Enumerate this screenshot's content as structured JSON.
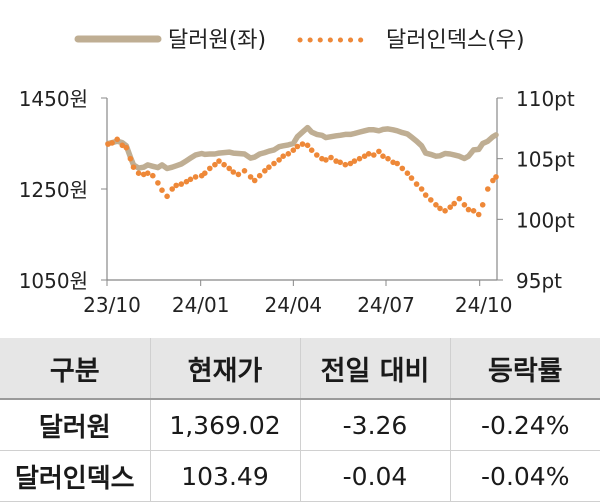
{
  "chart_data": {
    "type": "line",
    "legend": {
      "placement": "top",
      "items": [
        {
          "name": "달러원(좌)",
          "style": "solid"
        },
        {
          "name": "달러인덱스(우)",
          "style": "dotted"
        }
      ]
    },
    "x_ticks": [
      "23/10",
      "24/01",
      "24/04",
      "24/07",
      "24/10"
    ],
    "y_left": {
      "ticks": [
        "1450원",
        "1250원",
        "1050원"
      ],
      "range": [
        1050,
        1450
      ]
    },
    "y_right": {
      "ticks": [
        "110pt",
        "105pt",
        "100pt",
        "95pt"
      ],
      "range": [
        95,
        110
      ]
    },
    "grid": false,
    "series": [
      {
        "name": "달러원(좌)",
        "axis": "left",
        "color": "#bfae93",
        "points": [
          [
            "2023-10-02",
            1350
          ],
          [
            "2023-10-06",
            1352
          ],
          [
            "2023-10-11",
            1355
          ],
          [
            "2023-10-16",
            1352
          ],
          [
            "2023-10-20",
            1345
          ],
          [
            "2023-10-24",
            1320
          ],
          [
            "2023-10-27",
            1303
          ],
          [
            "2023-11-01",
            1296
          ],
          [
            "2023-11-06",
            1298
          ],
          [
            "2023-11-10",
            1303
          ],
          [
            "2023-11-15",
            1300
          ],
          [
            "2023-11-20",
            1297
          ],
          [
            "2023-11-24",
            1303
          ],
          [
            "2023-11-29",
            1295
          ],
          [
            "2023-12-04",
            1298
          ],
          [
            "2023-12-08",
            1301
          ],
          [
            "2023-12-13",
            1305
          ],
          [
            "2023-12-18",
            1312
          ],
          [
            "2023-12-22",
            1318
          ],
          [
            "2023-12-27",
            1325
          ],
          [
            "2024-01-02",
            1328
          ],
          [
            "2024-01-05",
            1326
          ],
          [
            "2024-01-10",
            1327
          ],
          [
            "2024-01-15",
            1327
          ],
          [
            "2024-01-19",
            1329
          ],
          [
            "2024-01-24",
            1330
          ],
          [
            "2024-01-29",
            1331
          ],
          [
            "2024-02-02",
            1329
          ],
          [
            "2024-02-07",
            1328
          ],
          [
            "2024-02-13",
            1327
          ],
          [
            "2024-02-19",
            1318
          ],
          [
            "2024-02-23",
            1320
          ],
          [
            "2024-02-28",
            1327
          ],
          [
            "2024-03-04",
            1330
          ],
          [
            "2024-03-08",
            1333
          ],
          [
            "2024-03-13",
            1336
          ],
          [
            "2024-03-18",
            1343
          ],
          [
            "2024-03-22",
            1345
          ],
          [
            "2024-03-27",
            1347
          ],
          [
            "2024-04-01",
            1350
          ],
          [
            "2024-04-05",
            1365
          ],
          [
            "2024-04-10",
            1375
          ],
          [
            "2024-04-15",
            1385
          ],
          [
            "2024-04-19",
            1375
          ],
          [
            "2024-04-24",
            1370
          ],
          [
            "2024-04-29",
            1368
          ],
          [
            "2024-05-03",
            1363
          ],
          [
            "2024-05-08",
            1365
          ],
          [
            "2024-05-13",
            1367
          ],
          [
            "2024-05-17",
            1368
          ],
          [
            "2024-05-22",
            1370
          ],
          [
            "2024-05-27",
            1370
          ],
          [
            "2024-05-31",
            1372
          ],
          [
            "2024-06-05",
            1375
          ],
          [
            "2024-06-10",
            1378
          ],
          [
            "2024-06-14",
            1380
          ],
          [
            "2024-06-19",
            1380
          ],
          [
            "2024-06-24",
            1378
          ],
          [
            "2024-06-28",
            1381
          ],
          [
            "2024-07-03",
            1382
          ],
          [
            "2024-07-08",
            1380
          ],
          [
            "2024-07-12",
            1378
          ],
          [
            "2024-07-17",
            1374
          ],
          [
            "2024-07-22",
            1371
          ],
          [
            "2024-07-26",
            1364
          ],
          [
            "2024-07-31",
            1355
          ],
          [
            "2024-08-05",
            1345
          ],
          [
            "2024-08-09",
            1329
          ],
          [
            "2024-08-14",
            1326
          ],
          [
            "2024-08-19",
            1322
          ],
          [
            "2024-08-23",
            1323
          ],
          [
            "2024-08-28",
            1328
          ],
          [
            "2024-09-02",
            1327
          ],
          [
            "2024-09-06",
            1325
          ],
          [
            "2024-09-11",
            1322
          ],
          [
            "2024-09-16",
            1317
          ],
          [
            "2024-09-20",
            1322
          ],
          [
            "2024-09-25",
            1336
          ],
          [
            "2024-09-30",
            1337
          ],
          [
            "2024-10-04",
            1350
          ],
          [
            "2024-10-09",
            1355
          ],
          [
            "2024-10-14",
            1365
          ],
          [
            "2024-10-17",
            1369
          ]
        ]
      },
      {
        "name": "달러인덱스(우)",
        "axis": "right",
        "color": "#ee8838",
        "points": [
          [
            "2023-10-02",
            106.2
          ],
          [
            "2023-10-06",
            106.3
          ],
          [
            "2023-10-11",
            106.6
          ],
          [
            "2023-10-16",
            106.1
          ],
          [
            "2023-10-20",
            105.9
          ],
          [
            "2023-10-24",
            105.0
          ],
          [
            "2023-10-27",
            104.3
          ],
          [
            "2023-11-01",
            103.8
          ],
          [
            "2023-11-06",
            103.7
          ],
          [
            "2023-11-10",
            103.8
          ],
          [
            "2023-11-15",
            103.6
          ],
          [
            "2023-11-20",
            103.0
          ],
          [
            "2023-11-24",
            102.4
          ],
          [
            "2023-11-29",
            101.9
          ],
          [
            "2023-12-04",
            102.5
          ],
          [
            "2023-12-08",
            102.8
          ],
          [
            "2023-12-13",
            102.9
          ],
          [
            "2023-12-18",
            103.1
          ],
          [
            "2023-12-22",
            103.3
          ],
          [
            "2023-12-27",
            103.5
          ],
          [
            "2024-01-02",
            103.6
          ],
          [
            "2024-01-05",
            103.8
          ],
          [
            "2024-01-10",
            104.2
          ],
          [
            "2024-01-15",
            104.5
          ],
          [
            "2024-01-19",
            104.8
          ],
          [
            "2024-01-24",
            104.5
          ],
          [
            "2024-01-29",
            104.2
          ],
          [
            "2024-02-02",
            103.9
          ],
          [
            "2024-02-07",
            103.7
          ],
          [
            "2024-02-13",
            104.0
          ],
          [
            "2024-02-19",
            103.5
          ],
          [
            "2024-02-23",
            103.2
          ],
          [
            "2024-02-28",
            103.6
          ],
          [
            "2024-03-04",
            104.0
          ],
          [
            "2024-03-08",
            104.3
          ],
          [
            "2024-03-13",
            104.6
          ],
          [
            "2024-03-18",
            104.9
          ],
          [
            "2024-03-22",
            105.2
          ],
          [
            "2024-03-27",
            105.4
          ],
          [
            "2024-04-01",
            105.7
          ],
          [
            "2024-04-05",
            106.0
          ],
          [
            "2024-04-10",
            106.2
          ],
          [
            "2024-04-15",
            106.1
          ],
          [
            "2024-04-19",
            105.7
          ],
          [
            "2024-04-24",
            105.3
          ],
          [
            "2024-04-29",
            105.0
          ],
          [
            "2024-05-03",
            104.9
          ],
          [
            "2024-05-08",
            105.1
          ],
          [
            "2024-05-13",
            104.8
          ],
          [
            "2024-05-17",
            104.7
          ],
          [
            "2024-05-22",
            104.5
          ],
          [
            "2024-05-27",
            104.6
          ],
          [
            "2024-05-31",
            104.8
          ],
          [
            "2024-06-05",
            105.0
          ],
          [
            "2024-06-10",
            105.2
          ],
          [
            "2024-06-14",
            105.4
          ],
          [
            "2024-06-19",
            105.3
          ],
          [
            "2024-06-24",
            105.6
          ],
          [
            "2024-06-28",
            105.2
          ],
          [
            "2024-07-03",
            105.0
          ],
          [
            "2024-07-08",
            104.7
          ],
          [
            "2024-07-12",
            104.6
          ],
          [
            "2024-07-17",
            104.2
          ],
          [
            "2024-07-22",
            103.8
          ],
          [
            "2024-07-26",
            103.4
          ],
          [
            "2024-07-31",
            102.9
          ],
          [
            "2024-08-05",
            102.5
          ],
          [
            "2024-08-09",
            102.0
          ],
          [
            "2024-08-14",
            101.6
          ],
          [
            "2024-08-19",
            101.2
          ],
          [
            "2024-08-23",
            100.9
          ],
          [
            "2024-08-28",
            100.7
          ],
          [
            "2024-09-02",
            101.0
          ],
          [
            "2024-09-06",
            101.3
          ],
          [
            "2024-09-11",
            101.7
          ],
          [
            "2024-09-16",
            101.2
          ],
          [
            "2024-09-20",
            100.8
          ],
          [
            "2024-09-25",
            100.7
          ],
          [
            "2024-09-30",
            100.4
          ],
          [
            "2024-10-04",
            101.2
          ],
          [
            "2024-10-09",
            102.5
          ],
          [
            "2024-10-14",
            103.2
          ],
          [
            "2024-10-17",
            103.5
          ]
        ]
      }
    ]
  },
  "table": {
    "headers": [
      "구분",
      "현재가",
      "전일 대비",
      "등락률"
    ],
    "rows": [
      [
        "달러원",
        "1,369.02",
        "-3.26",
        "-0.24%"
      ],
      [
        "달러인덱스",
        "103.49",
        "-0.04",
        "-0.04%"
      ]
    ]
  }
}
